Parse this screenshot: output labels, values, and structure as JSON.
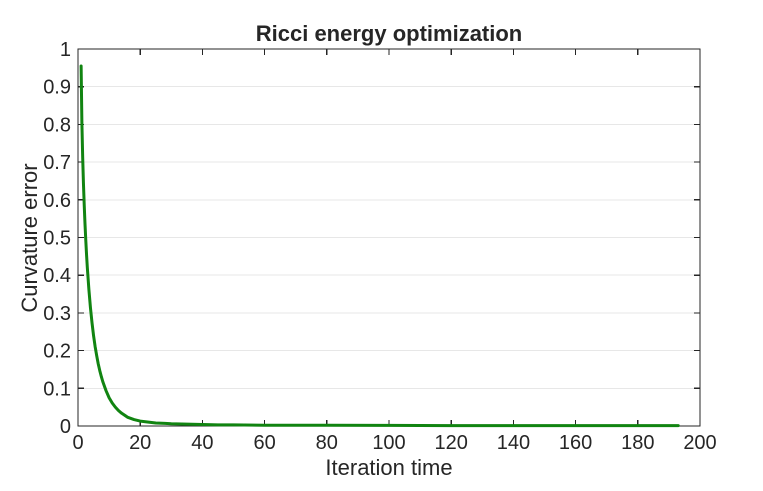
{
  "figure": {
    "background_color": "#ffffff"
  },
  "chart_data": {
    "type": "line",
    "title": "Ricci energy optimization",
    "xlabel": "Iteration time",
    "ylabel": "Curvature error",
    "xlim": [
      0,
      200
    ],
    "ylim": [
      0,
      1
    ],
    "xticks": [
      0,
      20,
      40,
      60,
      80,
      100,
      120,
      140,
      160,
      180,
      200
    ],
    "xtick_labels": [
      "0",
      "20",
      "40",
      "60",
      "80",
      "100",
      "120",
      "140",
      "160",
      "180",
      "200"
    ],
    "yticks": [
      0,
      0.1,
      0.2,
      0.3,
      0.4,
      0.5,
      0.6,
      0.7,
      0.8,
      0.9,
      1
    ],
    "ytick_labels": [
      "0",
      "0.1",
      "0.2",
      "0.3",
      "0.4",
      "0.5",
      "0.6",
      "0.7",
      "0.8",
      "0.9",
      "1"
    ],
    "grid": "horizontal-only",
    "grid_color": "#e7e7e7",
    "axis_color": "#262626",
    "text_color": "#262626",
    "legend": "none",
    "series": [
      {
        "name": "curvature-error",
        "color": "#118411",
        "line_width": 3,
        "x": [
          1,
          1.25,
          1.5,
          1.75,
          2,
          2.25,
          2.5,
          2.75,
          3,
          3.5,
          4,
          4.5,
          5,
          5.5,
          6,
          6.5,
          7,
          7.5,
          8,
          9,
          10,
          11,
          12,
          13,
          14,
          16,
          18,
          20,
          22,
          25,
          28,
          30,
          35,
          40,
          45,
          50,
          60,
          70,
          80,
          100,
          120,
          140,
          160,
          180,
          193
        ],
        "y": [
          0.955,
          0.804,
          0.714,
          0.644,
          0.586,
          0.536,
          0.493,
          0.454,
          0.42,
          0.362,
          0.314,
          0.274,
          0.24,
          0.211,
          0.187,
          0.165,
          0.147,
          0.131,
          0.117,
          0.094,
          0.075,
          0.061,
          0.05,
          0.041,
          0.034,
          0.023,
          0.017,
          0.013,
          0.011,
          0.008,
          0.007,
          0.006,
          0.005,
          0.004,
          0.003,
          0.003,
          0.002,
          0.002,
          0.002,
          0.0015,
          0.001,
          0.001,
          0.001,
          0.001,
          0.001
        ]
      }
    ]
  }
}
